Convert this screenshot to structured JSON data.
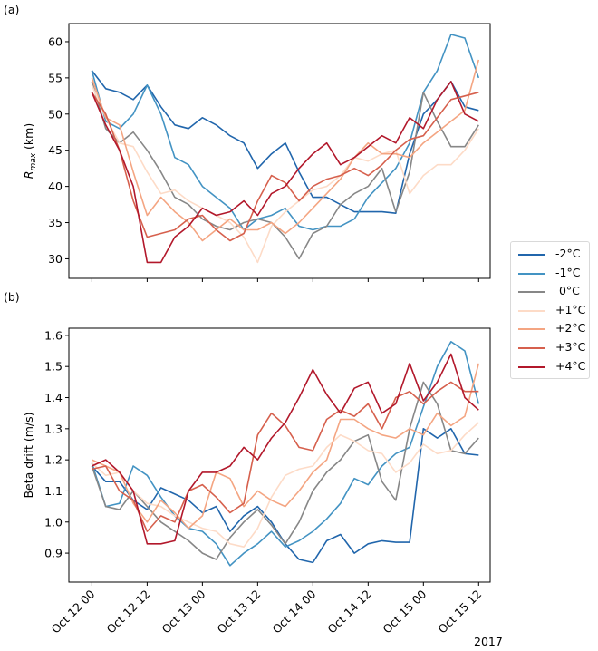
{
  "chart_data": [
    {
      "panel_label": "(a)",
      "type": "line",
      "ylabel": "R_max (km)",
      "ylabel_main": "R",
      "ylabel_sub": "max",
      "ylabel_unit": " (km)",
      "ylim": [
        27.3,
        62.5
      ],
      "yticks": [
        30,
        35,
        40,
        45,
        50,
        55,
        60
      ],
      "ytick_labels": [
        "30",
        "35",
        "40",
        "45",
        "50",
        "55",
        "60"
      ],
      "x_hours": [
        0,
        3,
        6,
        9,
        12,
        15,
        18,
        21,
        24,
        27,
        30,
        33,
        36,
        39,
        42,
        45,
        48,
        51,
        54,
        57,
        60,
        63,
        66,
        69,
        72,
        75,
        78,
        81,
        84
      ],
      "series": [
        {
          "name": "-2°C",
          "color": "#2166ac",
          "values": [
            56,
            53.5,
            53,
            52,
            54,
            51,
            48.5,
            48,
            49.5,
            48.5,
            47,
            46,
            42.5,
            44.5,
            46,
            42,
            38.5,
            38.5,
            37.5,
            36.5,
            36.5,
            36.5,
            36.3,
            44.5,
            50,
            52,
            54.5,
            51,
            50.5
          ]
        },
        {
          "name": "-1°C",
          "color": "#4393c3",
          "values": [
            56,
            49,
            48,
            50,
            54,
            50,
            44,
            43,
            40,
            38.5,
            37,
            34,
            35.5,
            36,
            37,
            34.5,
            34,
            34.5,
            34.5,
            35.5,
            38.5,
            40.5,
            42.5,
            46,
            53,
            56,
            61,
            60.5,
            55
          ]
        },
        {
          "name": "0°C",
          "color": "#878787",
          "values": [
            54.5,
            48,
            46,
            47.5,
            45,
            42,
            38.5,
            37.5,
            35.5,
            34.5,
            34,
            35,
            35.5,
            35,
            33,
            30,
            33.5,
            34.5,
            37.5,
            39,
            40,
            42.5,
            36.5,
            42,
            53,
            49,
            45.5,
            45.5,
            48.5
          ]
        },
        {
          "name": "+1°C",
          "color": "#fddbc7",
          "values": [
            54,
            49.5,
            46,
            45.5,
            42,
            39,
            39.5,
            38,
            37,
            36,
            35,
            33,
            29.5,
            34.5,
            36.5,
            38,
            39.5,
            40,
            41.5,
            44,
            43.5,
            44.5,
            45,
            39,
            41.5,
            43,
            43,
            45,
            48
          ]
        },
        {
          "name": "+2°C",
          "color": "#f4a582",
          "values": [
            55,
            49.5,
            48.5,
            42,
            36,
            38.5,
            36.5,
            35,
            32.5,
            34,
            35.5,
            34,
            34,
            35,
            33.5,
            35,
            37,
            39,
            41,
            44,
            46,
            44.5,
            44.5,
            44,
            46,
            47.5,
            49,
            50.5,
            57.5
          ]
        },
        {
          "name": "+3°C",
          "color": "#d6604d",
          "values": [
            53,
            50,
            45,
            38,
            33,
            33.5,
            34,
            35.5,
            36,
            34,
            32.5,
            33.5,
            38,
            41.5,
            40.5,
            38,
            40,
            41,
            41.5,
            42.5,
            41.5,
            43,
            45,
            46.5,
            47,
            49.5,
            52,
            52.5,
            53
          ]
        },
        {
          "name": "+4°C",
          "color": "#b2182b",
          "values": [
            53,
            48.5,
            45,
            40,
            29.5,
            29.5,
            33,
            34.5,
            37,
            36,
            36.5,
            38,
            36,
            39,
            40,
            42.5,
            44.5,
            46,
            43,
            44,
            45.5,
            47,
            46,
            49.5,
            48,
            52,
            54.5,
            50,
            49
          ]
        }
      ]
    },
    {
      "panel_label": "(b)",
      "type": "line",
      "ylabel": "Beta drift (m/s)",
      "ylim": [
        0.807,
        1.623
      ],
      "yticks": [
        0.9,
        1.0,
        1.1,
        1.2,
        1.3,
        1.4,
        1.5,
        1.6
      ],
      "ytick_labels": [
        "0.9",
        "1.0",
        "1.1",
        "1.2",
        "1.3",
        "1.4",
        "1.5",
        "1.6"
      ],
      "x_hours": [
        0,
        3,
        6,
        9,
        12,
        15,
        18,
        21,
        24,
        27,
        30,
        33,
        36,
        39,
        42,
        45,
        48,
        51,
        54,
        57,
        60,
        63,
        66,
        69,
        72,
        75,
        78,
        81,
        84
      ],
      "series": [
        {
          "name": "-2°C",
          "color": "#2166ac",
          "values": [
            1.18,
            1.13,
            1.13,
            1.07,
            1.04,
            1.11,
            1.09,
            1.07,
            1.03,
            1.05,
            0.97,
            1.02,
            1.05,
            1.0,
            0.93,
            0.88,
            0.87,
            0.94,
            0.96,
            0.9,
            0.93,
            0.94,
            0.935,
            0.935,
            1.3,
            1.27,
            1.3,
            1.22,
            1.215
          ]
        },
        {
          "name": "-1°C",
          "color": "#4393c3",
          "values": [
            1.19,
            1.05,
            1.06,
            1.18,
            1.15,
            1.08,
            1.02,
            0.98,
            0.97,
            0.93,
            0.86,
            0.9,
            0.93,
            0.97,
            0.92,
            0.94,
            0.97,
            1.01,
            1.06,
            1.14,
            1.12,
            1.18,
            1.22,
            1.24,
            1.37,
            1.5,
            1.58,
            1.55,
            1.38
          ]
        },
        {
          "name": "0°C",
          "color": "#878787",
          "values": [
            1.18,
            1.05,
            1.04,
            1.1,
            1.05,
            1.0,
            0.97,
            0.94,
            0.9,
            0.88,
            0.95,
            1.0,
            1.04,
            0.99,
            0.93,
            1.0,
            1.1,
            1.16,
            1.2,
            1.26,
            1.28,
            1.13,
            1.07,
            1.3,
            1.45,
            1.38,
            1.23,
            1.22,
            1.27
          ]
        },
        {
          "name": "+1°C",
          "color": "#fddbc7",
          "values": [
            1.19,
            1.15,
            1.16,
            1.1,
            1.06,
            1.05,
            1.02,
            1.0,
            0.98,
            0.97,
            0.93,
            0.92,
            0.98,
            1.08,
            1.15,
            1.17,
            1.18,
            1.24,
            1.28,
            1.26,
            1.23,
            1.22,
            1.16,
            1.19,
            1.25,
            1.22,
            1.23,
            1.28,
            1.32
          ]
        },
        {
          "name": "+2°C",
          "color": "#f4a582",
          "values": [
            1.2,
            1.18,
            1.16,
            1.06,
            1.0,
            1.07,
            1.03,
            0.98,
            1.02,
            1.16,
            1.14,
            1.05,
            1.1,
            1.07,
            1.05,
            1.1,
            1.16,
            1.2,
            1.33,
            1.33,
            1.3,
            1.28,
            1.27,
            1.3,
            1.28,
            1.35,
            1.31,
            1.34,
            1.51
          ]
        },
        {
          "name": "+3°C",
          "color": "#d6604d",
          "values": [
            1.17,
            1.18,
            1.1,
            1.07,
            0.97,
            1.02,
            1.0,
            1.1,
            1.12,
            1.08,
            1.03,
            1.06,
            1.28,
            1.35,
            1.31,
            1.24,
            1.23,
            1.33,
            1.36,
            1.34,
            1.38,
            1.3,
            1.4,
            1.42,
            1.38,
            1.42,
            1.45,
            1.42,
            1.42
          ]
        },
        {
          "name": "+4°C",
          "color": "#b2182b",
          "values": [
            1.18,
            1.2,
            1.16,
            1.1,
            0.93,
            0.93,
            0.94,
            1.1,
            1.16,
            1.16,
            1.18,
            1.24,
            1.2,
            1.27,
            1.32,
            1.4,
            1.49,
            1.41,
            1.35,
            1.43,
            1.45,
            1.35,
            1.38,
            1.51,
            1.39,
            1.45,
            1.54,
            1.4,
            1.36
          ]
        }
      ]
    }
  ],
  "xaxis": {
    "tick_hours": [
      0,
      12,
      24,
      36,
      48,
      60,
      72,
      84
    ],
    "tick_labels": [
      "Oct 12 00",
      "Oct 12 12",
      "Oct 13 00",
      "Oct 13 12",
      "Oct 14 00",
      "Oct 14 12",
      "Oct 15 00",
      "Oct 15 12"
    ],
    "xlim_hours": [
      -5,
      86.5
    ],
    "offset_label": "2017"
  },
  "legend": {
    "placement": "right",
    "entries": [
      {
        "label": "-2°C",
        "color": "#2166ac"
      },
      {
        "label": "-1°C",
        "color": "#4393c3"
      },
      {
        "label": " 0°C",
        "color": "#878787"
      },
      {
        "label": "+1°C",
        "color": "#fddbc7"
      },
      {
        "label": "+2°C",
        "color": "#f4a582"
      },
      {
        "label": "+3°C",
        "color": "#d6604d"
      },
      {
        "label": "+4°C",
        "color": "#b2182b"
      }
    ]
  }
}
